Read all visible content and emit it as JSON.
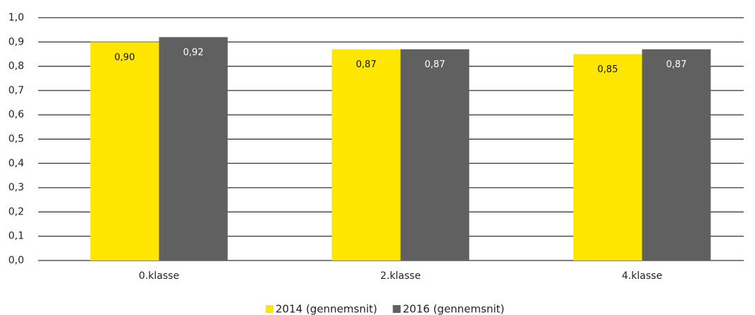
{
  "chart_data": {
    "type": "bar",
    "categories": [
      "0.klasse",
      "2.klasse",
      "4.klasse"
    ],
    "series": [
      {
        "name": "2014 (gennemsnit)",
        "color": "#ffe600",
        "values": [
          0.9,
          0.87,
          0.85
        ],
        "value_labels": [
          "0,90",
          "0,87",
          "0,85"
        ]
      },
      {
        "name": "2016 (gennemsnit)",
        "color": "#606060",
        "values": [
          0.92,
          0.87,
          0.87
        ],
        "value_labels": [
          "0,92",
          "0,87",
          "0,87"
        ]
      }
    ],
    "ylim": [
      0,
      1
    ],
    "yticks": [
      {
        "value": 0,
        "label": "0,0"
      },
      {
        "value": 0.1,
        "label": "0,1"
      },
      {
        "value": 0.2,
        "label": "0,2"
      },
      {
        "value": 0.3,
        "label": "0,3"
      },
      {
        "value": 0.4,
        "label": "0,4"
      },
      {
        "value": 0.5,
        "label": "0,5"
      },
      {
        "value": 0.6,
        "label": "0,6"
      },
      {
        "value": 0.7,
        "label": "0,7"
      },
      {
        "value": 0.8,
        "label": "0,8"
      },
      {
        "value": 0.9,
        "label": "0,9"
      },
      {
        "value": 1,
        "label": "1,0"
      }
    ],
    "grid": true,
    "legend": "bottom"
  }
}
